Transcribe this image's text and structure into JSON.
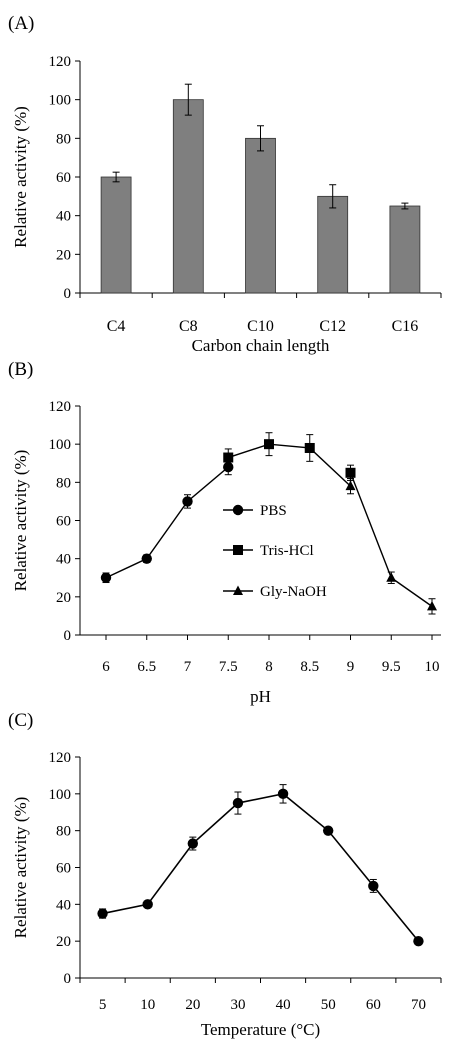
{
  "chart_data": [
    {
      "panel_label": "(A)",
      "type": "bar",
      "categories": [
        "C4",
        "C8",
        "C10",
        "C12",
        "C16"
      ],
      "values": [
        60,
        100,
        80,
        50,
        45
      ],
      "errors": [
        2.5,
        8,
        6.5,
        6,
        1.5
      ],
      "xlabel": "Carbon chain length",
      "ylabel": "Relative activity (%)",
      "ylim": [
        0,
        120
      ],
      "yticks": [
        0,
        20,
        40,
        60,
        80,
        100,
        120
      ],
      "bar_color": "#7f7f7f",
      "grid": false
    },
    {
      "panel_label": "(B)",
      "type": "line",
      "xlabel": "pH",
      "ylabel": "Relative activity (%)",
      "xlim": [
        6,
        10
      ],
      "ylim": [
        0,
        120
      ],
      "xticks": [
        "6",
        "6.5",
        "7",
        "7.5",
        "8",
        "8.5",
        "9",
        "9.5",
        "10"
      ],
      "yticks": [
        0,
        20,
        40,
        60,
        80,
        100,
        120
      ],
      "legend_position": "center-left",
      "grid": false,
      "series": [
        {
          "name": "PBS",
          "marker": "circle",
          "x": [
            6,
            6.5,
            7,
            7.5
          ],
          "y": [
            30,
            40,
            70,
            88
          ],
          "err": [
            2.5,
            2,
            3.5,
            4
          ]
        },
        {
          "name": "Tris-HCl",
          "marker": "square",
          "x": [
            7.5,
            8,
            8.5,
            9
          ],
          "y": [
            93,
            100,
            98,
            85
          ],
          "err": [
            4.5,
            6,
            7,
            4
          ]
        },
        {
          "name": "Gly-NaOH",
          "marker": "triangle",
          "x": [
            9,
            9.5,
            10
          ],
          "y": [
            78,
            30,
            15
          ],
          "err": [
            4,
            3,
            4
          ]
        }
      ]
    },
    {
      "panel_label": "(C)",
      "type": "line",
      "xlabel": "Temperature (°C)",
      "ylabel": "Relative activity (%)",
      "categories": [
        "5",
        "10",
        "20",
        "30",
        "40",
        "50",
        "60",
        "70"
      ],
      "ylim": [
        0,
        120
      ],
      "yticks": [
        0,
        20,
        40,
        60,
        80,
        100,
        120
      ],
      "grid": false,
      "series": [
        {
          "marker": "circle",
          "values": [
            35,
            40,
            73,
            95,
            100,
            80,
            50,
            20
          ],
          "err": [
            2.5,
            1.5,
            3.5,
            6,
            5,
            1.5,
            3.5,
            1.5
          ]
        }
      ]
    }
  ]
}
